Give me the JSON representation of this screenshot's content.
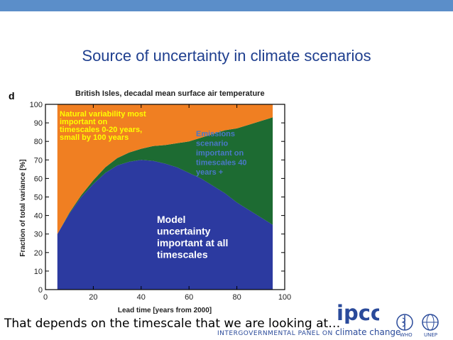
{
  "slide": {
    "title": "Source of uncertainty in climate scenarios",
    "caption": "That depends on the timescale that we are looking at…"
  },
  "logos": {
    "ipcc_text": "ipcc",
    "ipcc_sub_small": "INTERGOVERNMENTAL PANEL ON",
    "ipcc_sub_big": "climate change",
    "who": "WHO",
    "unep": "UNEP"
  },
  "colors": {
    "top_bar": "#5b8ec9",
    "title": "#1f3f8f",
    "natural": "#f07f22",
    "scenario": "#1d6b32",
    "model": "#2c3aa0",
    "natural_label": "#ffff00",
    "scenario_label": "#4a78c8",
    "model_label": "#ffffff"
  },
  "chart_data": {
    "type": "area",
    "panel_letter": "d",
    "title": "British Isles, decadal mean surface air temperature",
    "xlabel": "Lead time  [years from 2000]",
    "ylabel": "Fraction of total variance  [%]",
    "xlim": [
      0,
      100
    ],
    "ylim": [
      0,
      100
    ],
    "x_ticks": [
      "0",
      "20",
      "40",
      "60",
      "80",
      "100"
    ],
    "y_ticks": [
      "0",
      "10",
      "20",
      "30",
      "40",
      "50",
      "60",
      "70",
      "80",
      "90",
      "100"
    ],
    "x": [
      5,
      10,
      15,
      20,
      25,
      30,
      35,
      40,
      45,
      50,
      55,
      60,
      65,
      70,
      75,
      80,
      85,
      90,
      95
    ],
    "series": [
      {
        "name": "Model uncertainty",
        "key": "model",
        "values": [
          30,
          41,
          50,
          57,
          63,
          67,
          69,
          70,
          69.5,
          68,
          66,
          63,
          60,
          56,
          52,
          47,
          43,
          39,
          35
        ]
      },
      {
        "name": "Emissions scenario",
        "key": "scenario",
        "values": [
          0,
          0.5,
          1,
          2,
          3,
          4,
          5,
          6,
          8,
          10,
          13,
          17,
          22,
          28,
          34,
          40,
          46,
          52,
          58
        ]
      },
      {
        "name": "Natural variability",
        "key": "natural",
        "values": [
          70,
          58.5,
          49,
          41,
          34,
          29,
          26,
          24,
          22.5,
          22,
          21,
          20,
          18,
          16,
          14,
          13,
          11,
          9,
          7
        ]
      }
    ],
    "annotations": [
      {
        "key": "natural",
        "lines": [
          "Natural variability most",
          "important on",
          "timescales 0-20 years,",
          "small by 100 years"
        ]
      },
      {
        "key": "scenario",
        "lines": [
          "Emissions",
          "scenario",
          "important on",
          "timescales 40",
          "years +"
        ]
      },
      {
        "key": "model",
        "lines": [
          "Model",
          "uncertainty",
          "important at all",
          "timescales"
        ]
      }
    ],
    "grid": false,
    "legend": "none"
  }
}
